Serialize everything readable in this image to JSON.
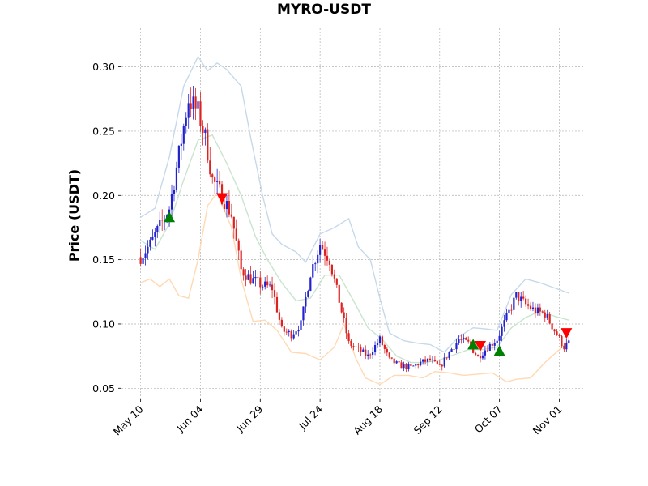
{
  "chart_data": {
    "type": "candlestick",
    "title": "MYRO-USDT",
    "ylabel": "Price (USDT)",
    "xlabel": "",
    "grid": true,
    "ylim": [
      0.042,
      0.33
    ],
    "yticks": [
      0.05,
      0.1,
      0.15,
      0.2,
      0.25,
      0.3
    ],
    "ytick_labels": [
      "0.05",
      "0.10",
      "0.15",
      "0.20",
      "0.25",
      "0.30"
    ],
    "xlim": [
      "2024-05-02",
      "2024-11-11"
    ],
    "xticks": [
      "2024-05-10",
      "2024-06-04",
      "2024-06-29",
      "2024-07-24",
      "2024-08-18",
      "2024-09-12",
      "2024-10-07",
      "2024-11-01"
    ],
    "xtick_labels": [
      "May 10",
      "Jun 04",
      "Jun 29",
      "Jul 24",
      "Aug 18",
      "Sep 12",
      "Oct 07",
      "Nov 01"
    ],
    "colors": {
      "up": "#2222cc",
      "down": "#dd2222",
      "upper_band": "#c6d9ea",
      "middle_band": "#c9e4cf",
      "lower_band": "#ffd9b3",
      "buy_marker": "#008000",
      "sell_marker": "#ff0000"
    },
    "close_anchors": [
      [
        "2024-05-10",
        0.152
      ],
      [
        "2024-05-14",
        0.162
      ],
      [
        "2024-05-18",
        0.176
      ],
      [
        "2024-05-22",
        0.19
      ],
      [
        "2024-05-26",
        0.232
      ],
      [
        "2024-05-30",
        0.275
      ],
      [
        "2024-06-03",
        0.265
      ],
      [
        "2024-06-06",
        0.245
      ],
      [
        "2024-06-09",
        0.212
      ],
      [
        "2024-06-13",
        0.2
      ],
      [
        "2024-06-17",
        0.185
      ],
      [
        "2024-06-21",
        0.142
      ],
      [
        "2024-06-25",
        0.135
      ],
      [
        "2024-06-30",
        0.13
      ],
      [
        "2024-07-04",
        0.128
      ],
      [
        "2024-07-08",
        0.095
      ],
      [
        "2024-07-12",
        0.092
      ],
      [
        "2024-07-16",
        0.1
      ],
      [
        "2024-07-20",
        0.14
      ],
      [
        "2024-07-24",
        0.162
      ],
      [
        "2024-07-28",
        0.15
      ],
      [
        "2024-08-01",
        0.118
      ],
      [
        "2024-08-05",
        0.085
      ],
      [
        "2024-08-09",
        0.08
      ],
      [
        "2024-08-13",
        0.075
      ],
      [
        "2024-08-18",
        0.088
      ],
      [
        "2024-08-22",
        0.072
      ],
      [
        "2024-08-26",
        0.068
      ],
      [
        "2024-08-31",
        0.066
      ],
      [
        "2024-09-04",
        0.07
      ],
      [
        "2024-09-08",
        0.072
      ],
      [
        "2024-09-12",
        0.066
      ],
      [
        "2024-09-16",
        0.078
      ],
      [
        "2024-09-20",
        0.088
      ],
      [
        "2024-09-24",
        0.085
      ],
      [
        "2024-09-28",
        0.074
      ],
      [
        "2024-10-02",
        0.082
      ],
      [
        "2024-10-06",
        0.088
      ],
      [
        "2024-10-10",
        0.105
      ],
      [
        "2024-10-14",
        0.122
      ],
      [
        "2024-10-18",
        0.115
      ],
      [
        "2024-10-22",
        0.11
      ],
      [
        "2024-10-26",
        0.108
      ],
      [
        "2024-10-30",
        0.095
      ],
      [
        "2024-11-03",
        0.082
      ],
      [
        "2024-11-05",
        0.085
      ]
    ],
    "bands": {
      "upper": [
        [
          "2024-05-10",
          0.183
        ],
        [
          "2024-05-16",
          0.19
        ],
        [
          "2024-05-22",
          0.23
        ],
        [
          "2024-05-28",
          0.285
        ],
        [
          "2024-06-03",
          0.308
        ],
        [
          "2024-06-07",
          0.297
        ],
        [
          "2024-06-11",
          0.303
        ],
        [
          "2024-06-15",
          0.298
        ],
        [
          "2024-06-21",
          0.285
        ],
        [
          "2024-06-25",
          0.245
        ],
        [
          "2024-06-30",
          0.2
        ],
        [
          "2024-07-04",
          0.17
        ],
        [
          "2024-07-08",
          0.162
        ],
        [
          "2024-07-14",
          0.156
        ],
        [
          "2024-07-18",
          0.148
        ],
        [
          "2024-07-24",
          0.17
        ],
        [
          "2024-07-30",
          0.175
        ],
        [
          "2024-08-05",
          0.182
        ],
        [
          "2024-08-09",
          0.16
        ],
        [
          "2024-08-14",
          0.15
        ],
        [
          "2024-08-18",
          0.12
        ],
        [
          "2024-08-22",
          0.093
        ],
        [
          "2024-08-28",
          0.087
        ],
        [
          "2024-09-03",
          0.085
        ],
        [
          "2024-09-08",
          0.084
        ],
        [
          "2024-09-14",
          0.078
        ],
        [
          "2024-09-20",
          0.09
        ],
        [
          "2024-09-26",
          0.097
        ],
        [
          "2024-10-02",
          0.096
        ],
        [
          "2024-10-06",
          0.095
        ],
        [
          "2024-10-12",
          0.123
        ],
        [
          "2024-10-18",
          0.135
        ],
        [
          "2024-10-24",
          0.132
        ],
        [
          "2024-10-30",
          0.128
        ],
        [
          "2024-11-05",
          0.124
        ]
      ],
      "middle": [
        [
          "2024-05-10",
          0.165
        ],
        [
          "2024-05-16",
          0.158
        ],
        [
          "2024-05-22",
          0.178
        ],
        [
          "2024-05-28",
          0.212
        ],
        [
          "2024-06-03",
          0.243
        ],
        [
          "2024-06-09",
          0.247
        ],
        [
          "2024-06-15",
          0.225
        ],
        [
          "2024-06-21",
          0.2
        ],
        [
          "2024-06-27",
          0.168
        ],
        [
          "2024-07-02",
          0.15
        ],
        [
          "2024-07-08",
          0.132
        ],
        [
          "2024-07-14",
          0.118
        ],
        [
          "2024-07-20",
          0.12
        ],
        [
          "2024-07-26",
          0.138
        ],
        [
          "2024-08-01",
          0.138
        ],
        [
          "2024-08-07",
          0.118
        ],
        [
          "2024-08-13",
          0.097
        ],
        [
          "2024-08-19",
          0.088
        ],
        [
          "2024-08-25",
          0.075
        ],
        [
          "2024-08-31",
          0.07
        ],
        [
          "2024-09-06",
          0.07
        ],
        [
          "2024-09-12",
          0.072
        ],
        [
          "2024-09-18",
          0.076
        ],
        [
          "2024-09-24",
          0.08
        ],
        [
          "2024-09-30",
          0.08
        ],
        [
          "2024-10-06",
          0.082
        ],
        [
          "2024-10-12",
          0.097
        ],
        [
          "2024-10-18",
          0.105
        ],
        [
          "2024-10-24",
          0.11
        ],
        [
          "2024-10-30",
          0.106
        ],
        [
          "2024-11-05",
          0.103
        ]
      ],
      "lower": [
        [
          "2024-05-10",
          0.132
        ],
        [
          "2024-05-14",
          0.135
        ],
        [
          "2024-05-18",
          0.129
        ],
        [
          "2024-05-22",
          0.135
        ],
        [
          "2024-05-26",
          0.122
        ],
        [
          "2024-05-30",
          0.12
        ],
        [
          "2024-06-03",
          0.15
        ],
        [
          "2024-06-07",
          0.192
        ],
        [
          "2024-06-11",
          0.202
        ],
        [
          "2024-06-17",
          0.175
        ],
        [
          "2024-06-21",
          0.135
        ],
        [
          "2024-06-26",
          0.102
        ],
        [
          "2024-07-01",
          0.103
        ],
        [
          "2024-07-06",
          0.095
        ],
        [
          "2024-07-12",
          0.078
        ],
        [
          "2024-07-18",
          0.077
        ],
        [
          "2024-07-24",
          0.072
        ],
        [
          "2024-07-30",
          0.082
        ],
        [
          "2024-08-03",
          0.1
        ],
        [
          "2024-08-08",
          0.073
        ],
        [
          "2024-08-12",
          0.058
        ],
        [
          "2024-08-18",
          0.053
        ],
        [
          "2024-08-24",
          0.06
        ],
        [
          "2024-08-30",
          0.06
        ],
        [
          "2024-09-05",
          0.058
        ],
        [
          "2024-09-10",
          0.063
        ],
        [
          "2024-09-16",
          0.062
        ],
        [
          "2024-09-22",
          0.06
        ],
        [
          "2024-09-28",
          0.061
        ],
        [
          "2024-10-04",
          0.062
        ],
        [
          "2024-10-10",
          0.055
        ],
        [
          "2024-10-14",
          0.057
        ],
        [
          "2024-10-20",
          0.058
        ],
        [
          "2024-10-26",
          0.07
        ],
        [
          "2024-11-01",
          0.08
        ],
        [
          "2024-11-05",
          0.087
        ]
      ]
    },
    "buy_signals": [
      [
        "2024-05-22",
        0.183
      ],
      [
        "2024-09-26",
        0.084
      ],
      [
        "2024-10-07",
        0.079
      ]
    ],
    "sell_signals": [
      [
        "2024-06-13",
        0.198
      ],
      [
        "2024-09-29",
        0.083
      ],
      [
        "2024-11-04",
        0.093
      ]
    ]
  }
}
